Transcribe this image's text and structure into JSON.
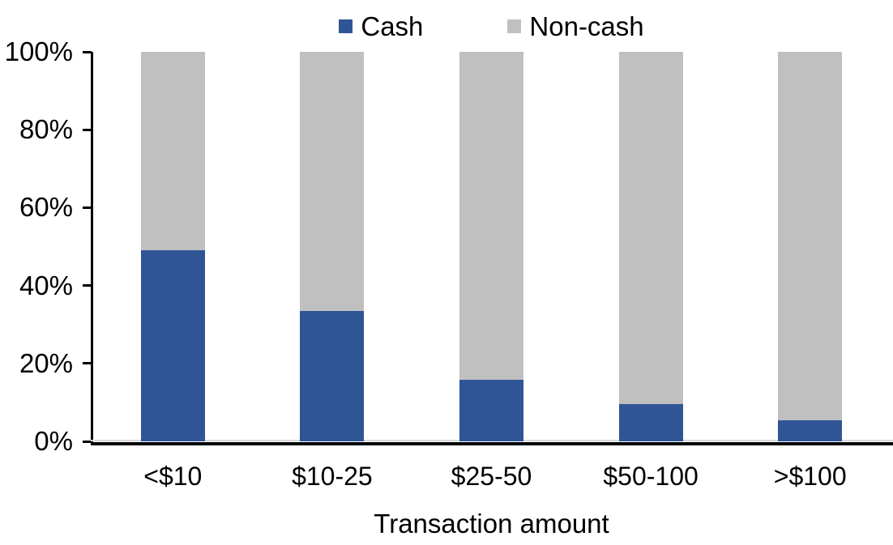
{
  "chart_data": {
    "type": "bar",
    "stacked": true,
    "percent_stacked": true,
    "title": "",
    "xlabel": "Transaction amount",
    "ylabel": "",
    "categories": [
      "<$10",
      "$10-25",
      "$25-50",
      "$50-100",
      ">$100"
    ],
    "series": [
      {
        "name": "Cash",
        "color": "#2F5597",
        "values": [
          49,
          33.5,
          15.7,
          9.6,
          5.4
        ]
      },
      {
        "name": "Non-cash",
        "color": "#C0C0C0",
        "values": [
          51,
          66.5,
          84.3,
          90.4,
          94.6
        ]
      }
    ],
    "y_ticks": [
      0,
      20,
      40,
      60,
      80,
      100
    ],
    "y_tick_suffix": "%",
    "ylim": [
      0,
      100
    ],
    "legend_position": "top",
    "grid": false,
    "axis_color": "#000000",
    "zero_line_color": "#D9D9D9",
    "background_color": "#FFFFFF"
  }
}
